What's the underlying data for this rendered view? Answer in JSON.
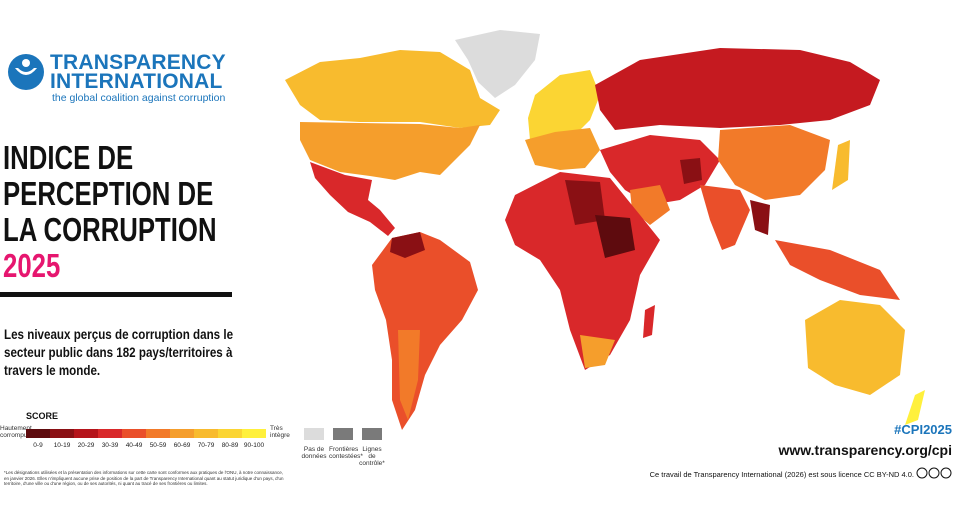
{
  "header": {
    "org_line1": "TRANSPARENCY",
    "org_line2": "INTERNATIONAL",
    "tagline": "the global coalition against corruption"
  },
  "title": {
    "line1": "INDICE DE",
    "line2": "PERCEPTION DE",
    "line3": "LA CORRUPTION",
    "year": "2025"
  },
  "description": "Les niveaux perçus de corruption dans le secteur public dans 182 pays/territoires à travers le monde.",
  "legend": {
    "title": "SCORE",
    "low_label": "Hautement corrompu",
    "high_label": "Très intègre",
    "bins": [
      {
        "label": "0-9",
        "color": "#5e0b0e"
      },
      {
        "label": "10-19",
        "color": "#8a1014"
      },
      {
        "label": "20-29",
        "color": "#b5141b"
      },
      {
        "label": "30-39",
        "color": "#d9282a"
      },
      {
        "label": "40-49",
        "color": "#ea4f2a"
      },
      {
        "label": "50-59",
        "color": "#f27a29"
      },
      {
        "label": "60-69",
        "color": "#f59e2c"
      },
      {
        "label": "70-79",
        "color": "#f8bb2e"
      },
      {
        "label": "80-89",
        "color": "#fbd533"
      },
      {
        "label": "90-100",
        "color": "#fff03c"
      }
    ],
    "extras": [
      "Pas de données",
      "Frontières contestées*",
      "Lignes de contrôle*"
    ]
  },
  "footnote": "*Les désignations utilisées et la présentation des informations sur cette carte sont conformes aux pratiques de l'ONU, à notre connaissance, en janvier 2026. Elles n'impliquent aucune prise de position de la part de Transparency International quant au statut juridique d'un pays, d'un territoire, d'une ville ou d'une région, ou de ses autorités, ni quant au tracé de ses frontières ou limites.",
  "hashtag": "#CPI2025",
  "url": "www.transparency.org/cpi",
  "license": "Ce travail de Transparency International (2026) est sous licence CC BY-ND 4.0."
}
